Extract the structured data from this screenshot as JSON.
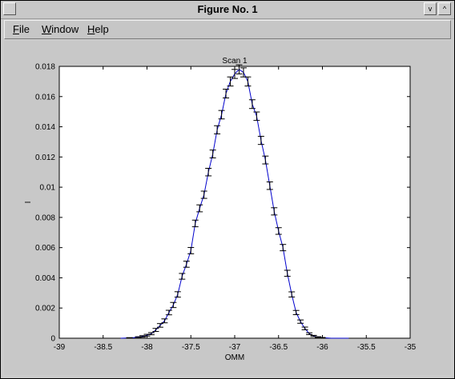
{
  "window": {
    "title": "Figure No. 1",
    "buttons": {
      "left_glyph": "",
      "minimize_glyph": "v",
      "maximize_glyph": "^"
    }
  },
  "menu": {
    "items": [
      {
        "label": "File"
      },
      {
        "label": "Window"
      },
      {
        "label": "Help"
      }
    ]
  },
  "colors": {
    "series": "#0000cc",
    "axis": "#000000",
    "plot_bg": "#ffffff",
    "window_bg": "#c8c8c8"
  },
  "chart_data": {
    "type": "line",
    "title": "Scan 1",
    "xlabel": "OMM",
    "ylabel": "I",
    "xlim": [
      -39,
      -35
    ],
    "ylim": [
      0,
      0.018
    ],
    "xticks": [
      -39,
      -38.5,
      -38,
      -37.5,
      -37,
      -36.5,
      -36,
      -35.5,
      -35
    ],
    "xtick_labels": [
      "-39",
      "-38.5",
      "-38",
      "-37.5",
      "-37",
      "-36.5",
      "-36",
      "-35.5",
      "-35"
    ],
    "yticks": [
      0,
      0.002,
      0.004,
      0.006,
      0.008,
      0.01,
      0.012,
      0.014,
      0.016,
      0.018
    ],
    "ytick_labels": [
      "0",
      "0.002",
      "0.004",
      "0.006",
      "0.008",
      "0.01",
      "0.012",
      "0.014",
      "0.016",
      "0.018"
    ],
    "grid": false,
    "series": [
      {
        "x": [
          -38.3,
          -38.2,
          -38.1,
          -38.05,
          -38.0,
          -37.95,
          -37.9,
          -37.85,
          -37.8,
          -37.75,
          -37.7,
          -37.65,
          -37.6,
          -37.55,
          -37.5,
          -37.45,
          -37.4,
          -37.35,
          -37.3,
          -37.25,
          -37.2,
          -37.15,
          -37.1,
          -37.05,
          -37.0,
          -36.95,
          -36.9,
          -36.85,
          -36.8,
          -36.75,
          -36.7,
          -36.65,
          -36.6,
          -36.55,
          -36.5,
          -36.45,
          -36.4,
          -36.35,
          -36.3,
          -36.25,
          -36.2,
          -36.15,
          -36.1,
          -36.05,
          -36.0,
          -35.9,
          -35.8,
          -35.7
        ],
        "y": [
          0.0,
          2e-05,
          6e-05,
          0.00012,
          0.0002,
          0.0003,
          0.00055,
          0.00085,
          0.00115,
          0.0017,
          0.0022,
          0.0029,
          0.0041,
          0.0049,
          0.0058,
          0.0076,
          0.0086,
          0.0095,
          0.011,
          0.0122,
          0.0138,
          0.0148,
          0.0162,
          0.017,
          0.0175,
          0.0178,
          0.0176,
          0.017,
          0.0155,
          0.0147,
          0.0131,
          0.0118,
          0.0101,
          0.0084,
          0.0071,
          0.006,
          0.0043,
          0.0029,
          0.0017,
          0.0011,
          0.00065,
          0.0003,
          0.00015,
          7e-05,
          3e-05,
          0.0,
          0.0,
          0.0
        ],
        "err": [
          0.0,
          2e-05,
          4e-05,
          5e-05,
          6e-05,
          7e-05,
          0.0001,
          0.00012,
          0.00013,
          0.00015,
          0.00017,
          0.00018,
          0.00019,
          0.0002,
          0.00021,
          0.00022,
          0.00023,
          0.00024,
          0.00025,
          0.00026,
          0.00027,
          0.00028,
          0.00029,
          0.0003,
          0.0003,
          0.0003,
          0.0003,
          0.0003,
          0.00029,
          0.00028,
          0.00027,
          0.00026,
          0.00025,
          0.00024,
          0.00022,
          0.00021,
          0.0002,
          0.00017,
          0.00014,
          0.00011,
          9e-05,
          6e-05,
          4e-05,
          3e-05,
          2e-05,
          0.0,
          0.0,
          0.0
        ]
      }
    ]
  }
}
